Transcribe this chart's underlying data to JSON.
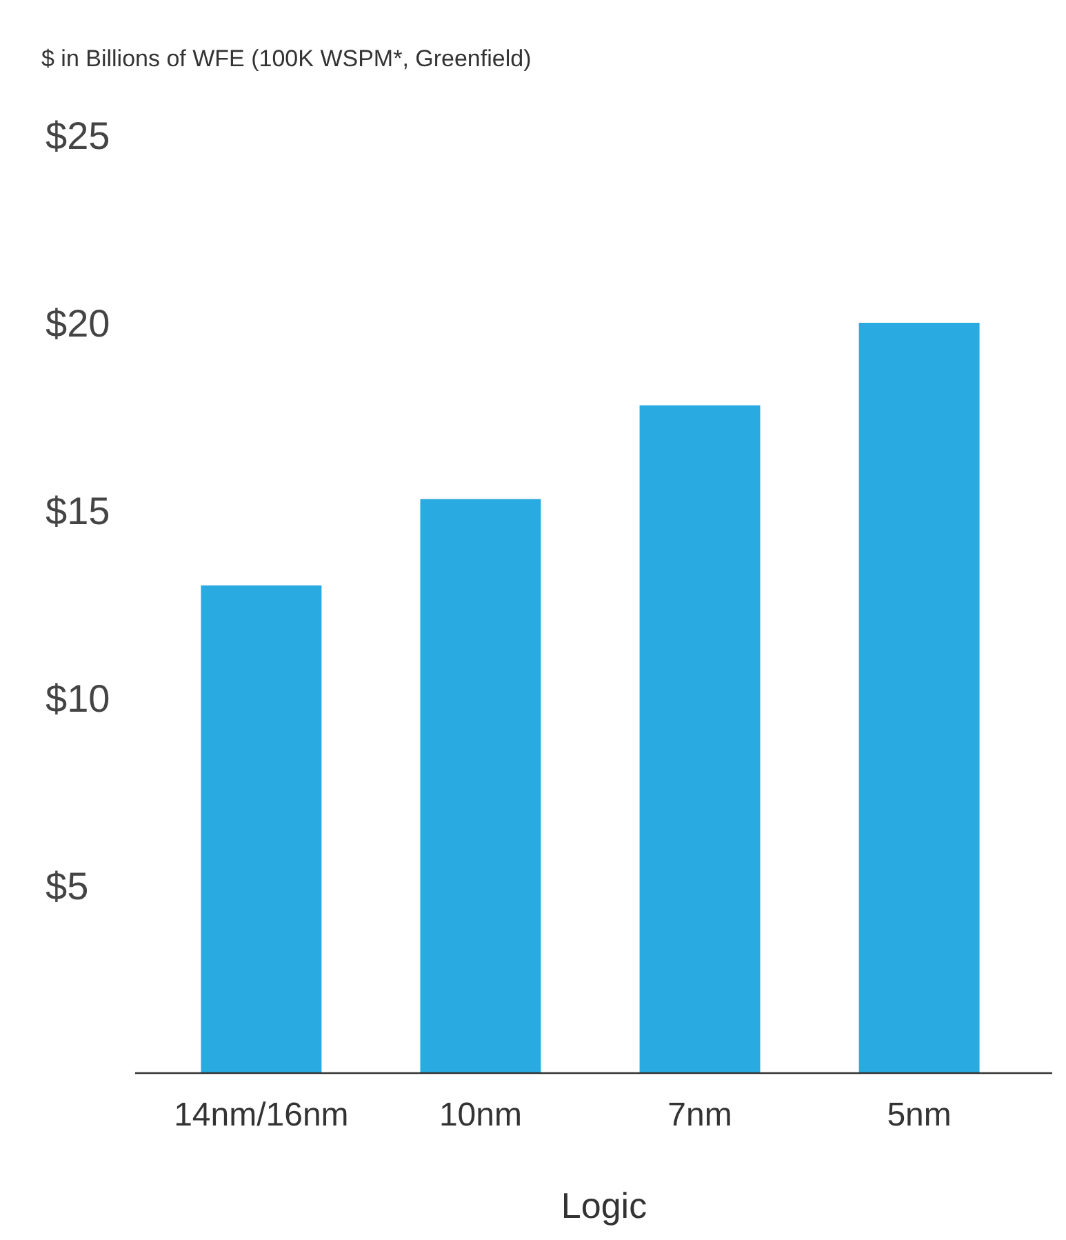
{
  "chart_data": {
    "type": "bar",
    "ylabel": "$ in Billions of WFE (100K WSPM*, Greenfield)",
    "xlabel": "Logic",
    "categories": [
      "14nm/16nm",
      "10nm",
      "7nm",
      "5nm"
    ],
    "values": [
      13.0,
      15.3,
      17.8,
      20.0
    ],
    "color": "#29abe2",
    "ylim": [
      0,
      25
    ],
    "yticks": [
      {
        "value": 5,
        "label": "$5"
      },
      {
        "value": 10,
        "label": "$10"
      },
      {
        "value": 15,
        "label": "$15"
      },
      {
        "value": 20,
        "label": "$20"
      },
      {
        "value": 25,
        "label": "$25"
      }
    ],
    "grid": false
  }
}
